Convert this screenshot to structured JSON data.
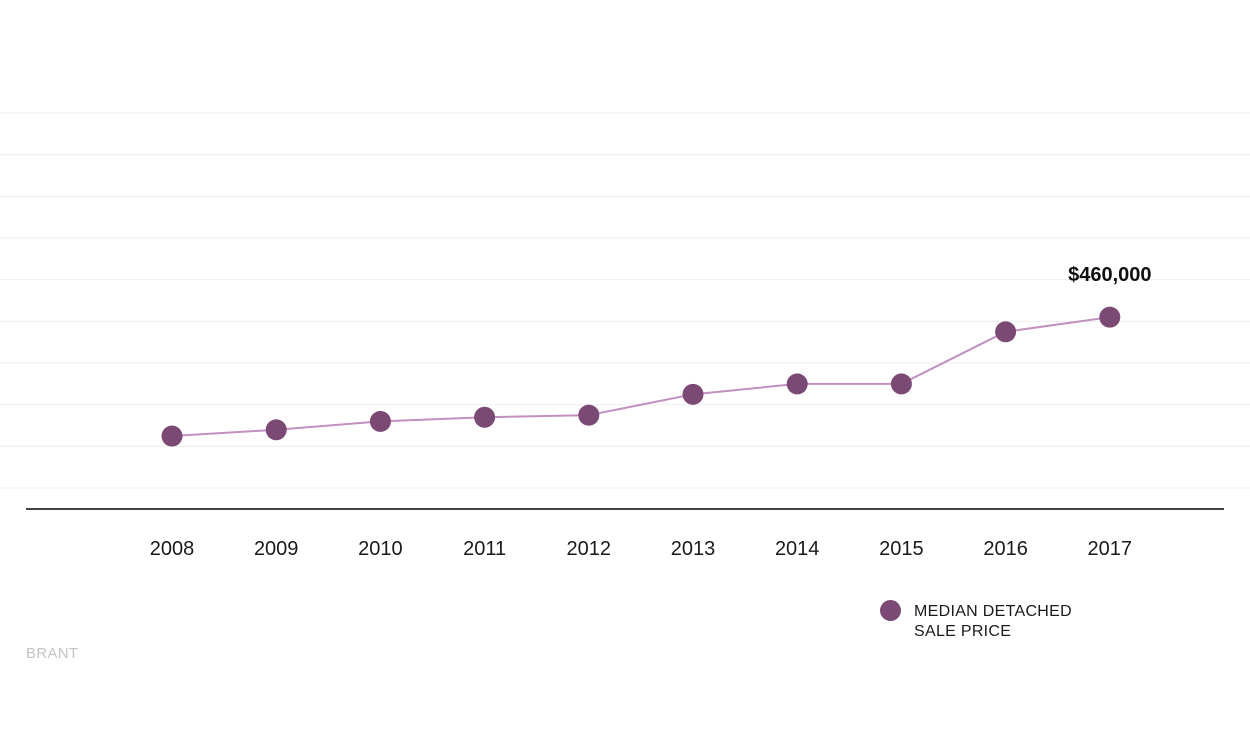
{
  "chart_data": {
    "type": "line",
    "x": [
      "2008",
      "2009",
      "2010",
      "2011",
      "2012",
      "2013",
      "2014",
      "2015",
      "2016",
      "2017"
    ],
    "series": [
      {
        "name": "MEDIAN DETACHED SALE PRICE",
        "values": [
          175000,
          190000,
          210000,
          220000,
          225000,
          275000,
          300000,
          300000,
          425000,
          460000
        ]
      }
    ],
    "value_label": "$460,000",
    "ylim": [
      0,
      920000
    ],
    "grid": true,
    "legend_position": "bottom-right",
    "colors": {
      "marker": "#7b4a74",
      "line": "#c18fc0",
      "grid": "#eeeeee",
      "axis": "#444444"
    }
  },
  "legend": {
    "line1": "MEDIAN DETACHED",
    "line2": "SALE PRICE"
  },
  "source_label": "BRANT"
}
